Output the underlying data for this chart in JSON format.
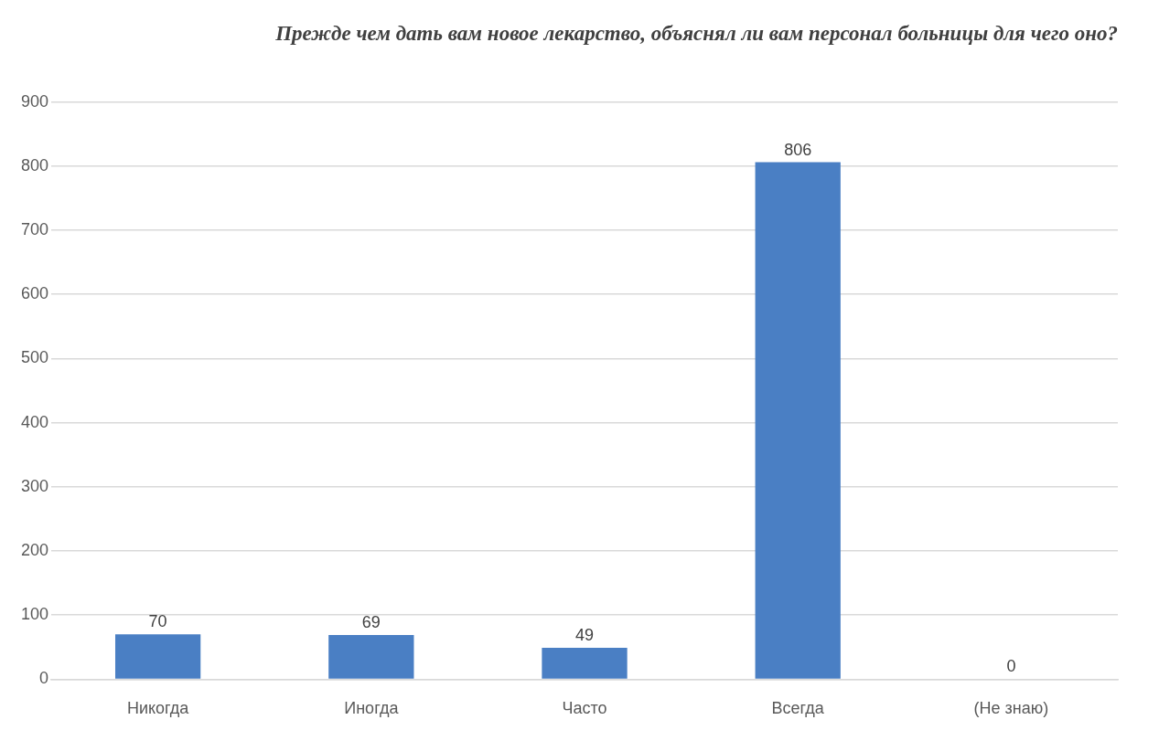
{
  "chart_data": {
    "type": "bar",
    "title": "Прежде чем дать вам новое лекарство, объяснял ли вам персонал больницы для чего оно?",
    "categories": [
      "Никогда",
      "Иногда",
      "Часто",
      "Всегда",
      "(Не знаю)"
    ],
    "values": [
      70,
      69,
      49,
      806,
      0
    ],
    "color": "#4a7fc4",
    "ylim": [
      0,
      900
    ],
    "yticks": [
      0,
      100,
      200,
      300,
      400,
      500,
      600,
      700,
      800,
      900
    ],
    "grid": "y",
    "data_labels": true,
    "legend": false
  }
}
